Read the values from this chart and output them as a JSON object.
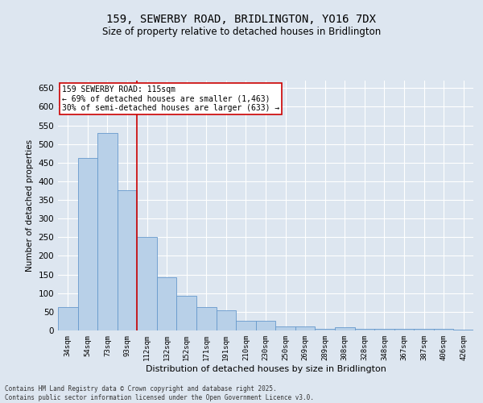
{
  "title": "159, SEWERBY ROAD, BRIDLINGTON, YO16 7DX",
  "subtitle": "Size of property relative to detached houses in Bridlington",
  "xlabel": "Distribution of detached houses by size in Bridlington",
  "ylabel": "Number of detached properties",
  "categories": [
    "34sqm",
    "54sqm",
    "73sqm",
    "93sqm",
    "112sqm",
    "132sqm",
    "152sqm",
    "171sqm",
    "191sqm",
    "210sqm",
    "230sqm",
    "250sqm",
    "269sqm",
    "289sqm",
    "308sqm",
    "328sqm",
    "348sqm",
    "367sqm",
    "387sqm",
    "406sqm",
    "426sqm"
  ],
  "values": [
    62,
    462,
    530,
    375,
    250,
    142,
    93,
    62,
    55,
    25,
    25,
    10,
    10,
    5,
    8,
    4,
    4,
    5,
    4,
    4,
    3
  ],
  "bar_color": "#b8d0e8",
  "bar_edge_color": "#6699cc",
  "vline_index": 4,
  "vline_color": "#cc0000",
  "annotation_title": "159 SEWERBY ROAD: 115sqm",
  "annotation_line1": "← 69% of detached houses are smaller (1,463)",
  "annotation_line2": "30% of semi-detached houses are larger (633) →",
  "annotation_box_color": "#ffffff",
  "annotation_box_edge": "#cc0000",
  "background_color": "#dde6f0",
  "footer_line1": "Contains HM Land Registry data © Crown copyright and database right 2025.",
  "footer_line2": "Contains public sector information licensed under the Open Government Licence v3.0.",
  "ylim": [
    0,
    670
  ],
  "yticks": [
    0,
    50,
    100,
    150,
    200,
    250,
    300,
    350,
    400,
    450,
    500,
    550,
    600,
    650
  ]
}
